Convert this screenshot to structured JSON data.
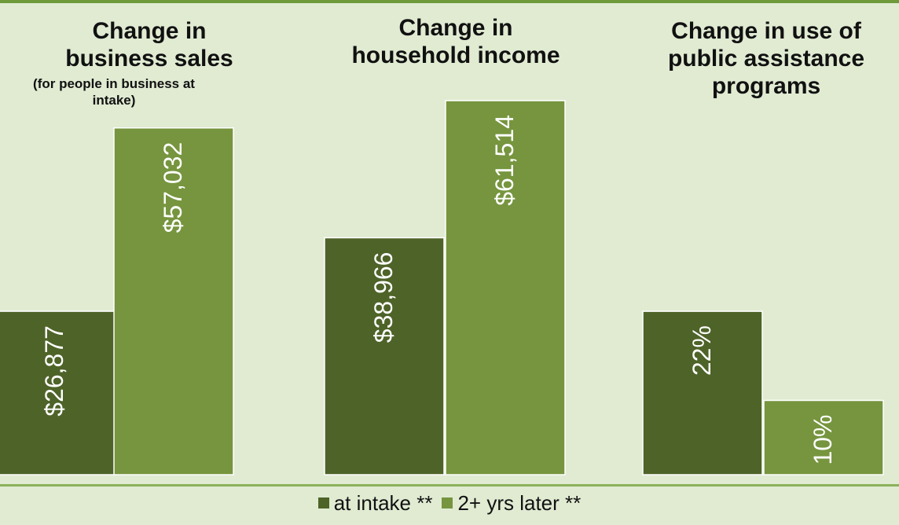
{
  "chart_data": {
    "type": "bar",
    "groups": [
      {
        "title": "Change in\nbusiness sales",
        "subtitle": "(for people in business at\nintake)",
        "values": [
          26877,
          57032
        ],
        "labels": [
          "$26,877",
          "$57,032"
        ],
        "scale": "dollars"
      },
      {
        "title": "Change in\nhousehold income",
        "subtitle": "",
        "values": [
          38966,
          61514
        ],
        "labels": [
          "$38,966",
          "$61,514"
        ],
        "scale": "dollars"
      },
      {
        "title": "Change in use of\npublic assistance\nprograms",
        "subtitle": "",
        "values": [
          22,
          10
        ],
        "labels": [
          "22%",
          "10%"
        ],
        "scale": "percent"
      }
    ],
    "series": [
      {
        "name": "at intake **",
        "color": "#4e6328"
      },
      {
        "name": "2+ yrs later **",
        "color": "#76953e"
      }
    ],
    "legend_position": "bottom",
    "grid": false
  }
}
